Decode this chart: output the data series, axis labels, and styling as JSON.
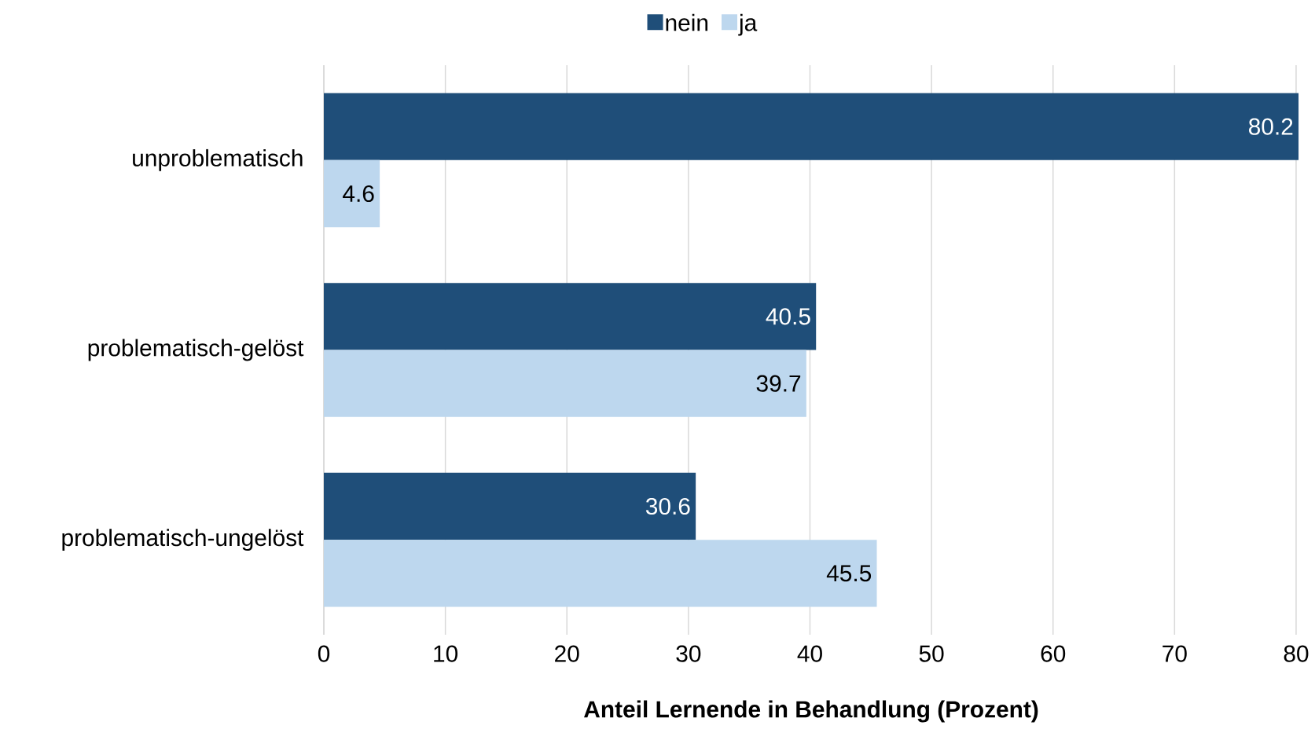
{
  "chart_data": {
    "type": "bar",
    "orientation": "horizontal",
    "xlabel": "Anteil Lernende in Behandlung (Prozent)",
    "categories": [
      "unproblematisch",
      "problematisch-gelöst",
      "problematisch-ungelöst"
    ],
    "series": [
      {
        "name": "nein",
        "color": "#1f4e79",
        "values": [
          80.2,
          40.5,
          30.6
        ]
      },
      {
        "name": "ja",
        "color": "#bdd7ee",
        "values": [
          4.6,
          39.7,
          45.5
        ]
      }
    ],
    "xlim": [
      0,
      80.2
    ],
    "xticks": [
      0,
      10,
      20,
      30,
      40,
      50,
      60,
      70,
      80
    ],
    "grid": "x",
    "legend": "top",
    "data_labels": true
  }
}
